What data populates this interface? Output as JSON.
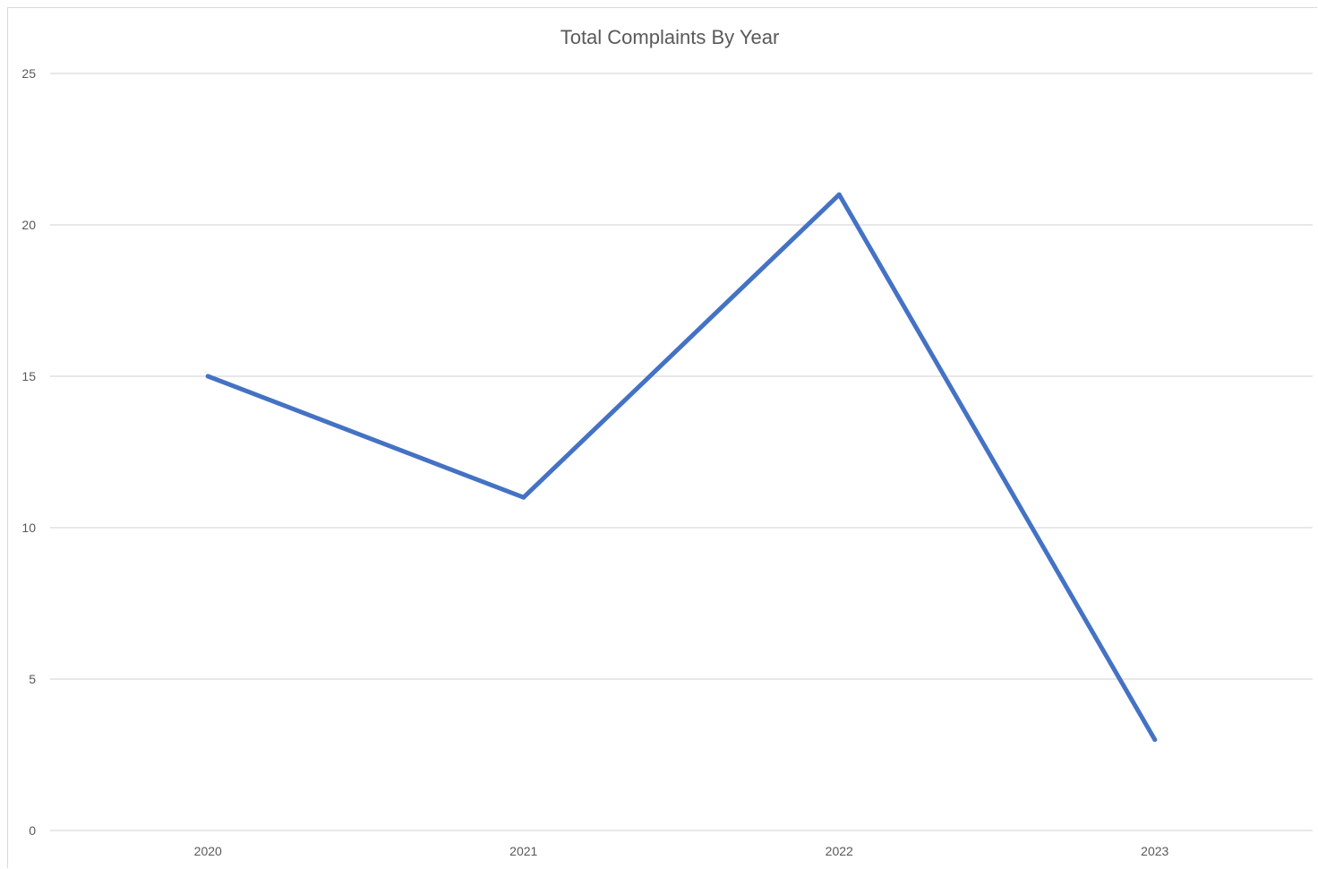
{
  "chart_data": {
    "type": "line",
    "title": "Total Complaints By Year",
    "xlabel": "",
    "ylabel": "",
    "categories": [
      "2020",
      "2021",
      "2022",
      "2023"
    ],
    "series": [
      {
        "values": [
          15,
          11,
          21,
          3
        ]
      }
    ],
    "ylim": [
      0,
      25
    ],
    "yticks": [
      0,
      5,
      10,
      15,
      20,
      25
    ],
    "grid": true,
    "legend": "none",
    "colors": {
      "line": "#4472c4",
      "grid": "#d9d9d9",
      "text": "#595959"
    }
  }
}
